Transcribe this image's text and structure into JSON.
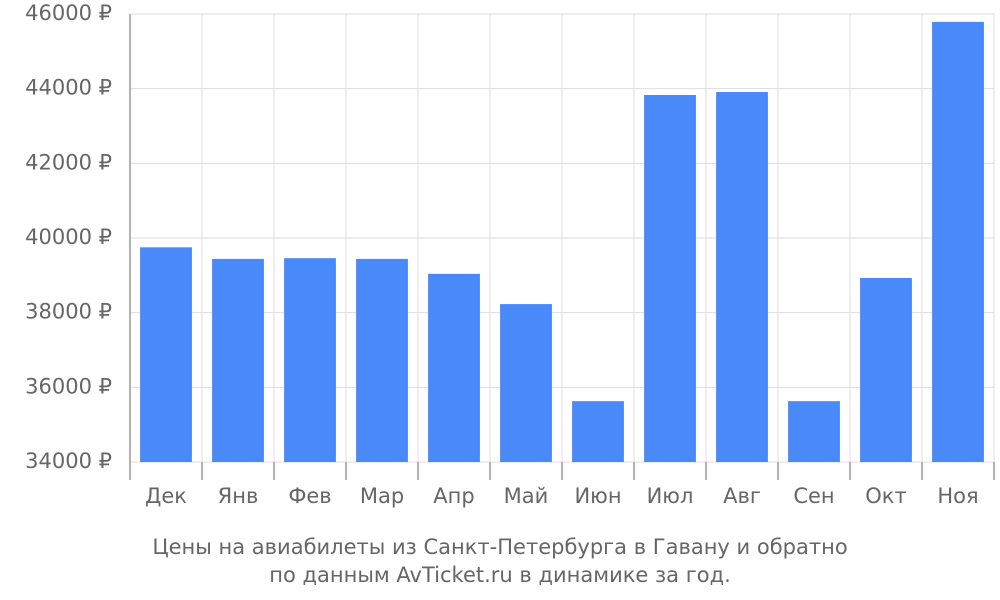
{
  "chart_data": {
    "type": "bar",
    "caption": [
      "Цены на авиабилеты из Санкт-Петербурга в Гавану и обратно",
      "по данным AvTicket.ru в динамике за год."
    ],
    "categories": [
      "Дек",
      "Янв",
      "Фев",
      "Мар",
      "Апр",
      "Май",
      "Июн",
      "Июл",
      "Авг",
      "Сен",
      "Окт",
      "Ноя"
    ],
    "values": [
      39750,
      39440,
      39460,
      39440,
      39040,
      38230,
      35630,
      43830,
      43910,
      35630,
      38930,
      45790
    ],
    "color": "#4a89fa",
    "ylim": [
      34000,
      46000
    ],
    "yticks": [
      {
        "value": 34000,
        "label": "34000 ₽"
      },
      {
        "value": 36000,
        "label": "36000 ₽"
      },
      {
        "value": 38000,
        "label": "38000 ₽"
      },
      {
        "value": 40000,
        "label": "40000 ₽"
      },
      {
        "value": 42000,
        "label": "42000 ₽"
      },
      {
        "value": 44000,
        "label": "44000 ₽"
      },
      {
        "value": 46000,
        "label": "46000 ₽"
      }
    ],
    "grid": true
  }
}
